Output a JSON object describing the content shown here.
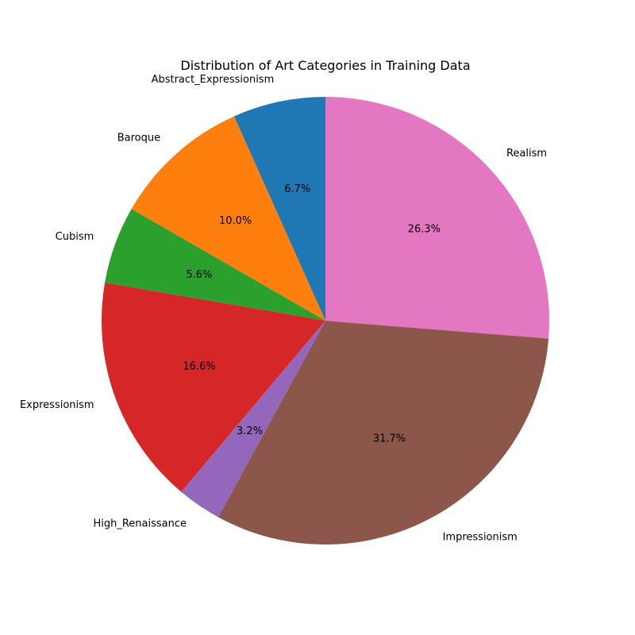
{
  "chart_data": {
    "type": "pie",
    "title": "Distribution of Art Categories in Training Data",
    "start_angle_deg": 90,
    "direction": "counterclockwise",
    "slices": [
      {
        "label": "Abstract_Expressionism",
        "value": 6.7,
        "pct_label": "6.7%",
        "color": "#1f77b4"
      },
      {
        "label": "Baroque",
        "value": 10.0,
        "pct_label": "10.0%",
        "color": "#ff7f0e"
      },
      {
        "label": "Cubism",
        "value": 5.6,
        "pct_label": "5.6%",
        "color": "#2ca02c"
      },
      {
        "label": "Expressionism",
        "value": 16.6,
        "pct_label": "16.6%",
        "color": "#d62728"
      },
      {
        "label": "High_Renaissance",
        "value": 3.2,
        "pct_label": "3.2%",
        "color": "#9467bd"
      },
      {
        "label": "Impressionism",
        "value": 31.7,
        "pct_label": "31.7%",
        "color": "#8c564b"
      },
      {
        "label": "Realism",
        "value": 26.3,
        "pct_label": "26.3%",
        "color": "#e377c2"
      }
    ]
  }
}
